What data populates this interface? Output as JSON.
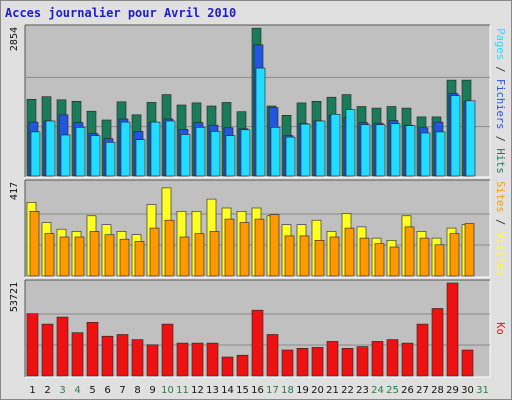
{
  "chart_data": {
    "type": "bar",
    "title": "Acces journalier pour Avril 2010",
    "categories": [
      "1",
      "2",
      "3",
      "4",
      "5",
      "6",
      "7",
      "8",
      "9",
      "10",
      "11",
      "12",
      "13",
      "14",
      "15",
      "16",
      "17",
      "18",
      "19",
      "20",
      "21",
      "22",
      "23",
      "24",
      "25",
      "26",
      "27",
      "28",
      "29",
      "30",
      "31"
    ],
    "weekend_categories": [
      "3",
      "4",
      "10",
      "11",
      "17",
      "18",
      "24",
      "25",
      "31"
    ],
    "colors": {
      "hits": "#1a7a5a",
      "fichiers": "#2255e0",
      "pages": "#22ddff",
      "visites": "#ffff22",
      "sites": "#ff9900",
      "ko": "#ee1111",
      "weekend_tick": "#2a7a4a",
      "weekday_tick": "#111111",
      "panel_bg": "#c0c0c0",
      "frame_bg": "#e0e0e0",
      "title": "#1d1dc8"
    },
    "panels": [
      {
        "max_label": "2854",
        "ymax": 2854,
        "right_labels": [
          {
            "text": "Pages",
            "color": "#22ddff"
          },
          {
            "text": " / ",
            "color": "#333333"
          },
          {
            "text": "Fichiers",
            "color": "#2255e0"
          },
          {
            "text": " / ",
            "color": "#333333"
          },
          {
            "text": "Hits",
            "color": "#1a7a5a"
          }
        ],
        "series": [
          {
            "name": "Hits",
            "color": "#1a7a5a",
            "values": [
              1480,
              1530,
              1470,
              1440,
              1250,
              1080,
              1430,
              1180,
              1420,
              1570,
              1370,
              1410,
              1350,
              1420,
              1240,
              2850,
              1350,
              1170,
              1410,
              1440,
              1520,
              1570,
              1340,
              1310,
              1340,
              1310,
              1140,
              1140,
              1850,
              1850,
              null
            ]
          },
          {
            "name": "Fichiers",
            "color": "#2255e0",
            "values": [
              1040,
              1060,
              1180,
              1030,
              820,
              720,
              1100,
              860,
              1040,
              1100,
              900,
              1030,
              980,
              930,
              910,
              2530,
              1320,
              780,
              1010,
              1060,
              1170,
              1130,
              1030,
              1020,
              1070,
              980,
              930,
              1040,
              1590,
              1440,
              null
            ]
          },
          {
            "name": "Pages",
            "color": "#22ddff",
            "values": [
              850,
              1060,
              790,
              940,
              780,
              650,
              1040,
              700,
              1040,
              1060,
              800,
              940,
              860,
              780,
              890,
              2080,
              940,
              750,
              1000,
              1060,
              1190,
              1280,
              990,
              990,
              1010,
              970,
              830,
              850,
              1550,
              1450,
              null
            ]
          }
        ]
      },
      {
        "max_label": "417",
        "ymax": 417,
        "right_labels": [
          {
            "text": "Sites",
            "color": "#ff9900"
          },
          {
            "text": " / ",
            "color": "#333333"
          },
          {
            "text": "Visites",
            "color": "#ffff22"
          }
        ],
        "series": [
          {
            "name": "Visites",
            "color": "#ffff22",
            "values": [
              330,
              240,
              210,
              200,
              270,
              230,
              200,
              185,
              320,
              395,
              290,
              290,
              345,
              305,
              290,
              305,
              270,
              230,
              230,
              250,
              200,
              280,
              220,
              170,
              160,
              270,
              200,
              170,
              215,
              230,
              null
            ]
          },
          {
            "name": "Sites",
            "color": "#ff9900",
            "values": [
              290,
              190,
              175,
              175,
              200,
              185,
              165,
              155,
              215,
              250,
              175,
              190,
              200,
              255,
              240,
              255,
              275,
              180,
              180,
              160,
              175,
              215,
              170,
              145,
              130,
              220,
              170,
              140,
              190,
              235,
              null
            ]
          }
        ]
      },
      {
        "max_label": "53721",
        "ymax": 53721,
        "right_labels": [
          {
            "text": "Ko",
            "color": "#ee1111"
          }
        ],
        "series": [
          {
            "name": "Ko",
            "color": "#ee1111",
            "values": [
              36000,
              30000,
              34000,
              25000,
              31000,
              23000,
              24000,
              21000,
              18000,
              30000,
              19000,
              19000,
              19000,
              11000,
              12000,
              38000,
              24000,
              15000,
              16000,
              16500,
              20000,
              16000,
              17000,
              20000,
              21000,
              19000,
              30000,
              39000,
              53721,
              15000,
              null
            ]
          }
        ]
      }
    ]
  }
}
